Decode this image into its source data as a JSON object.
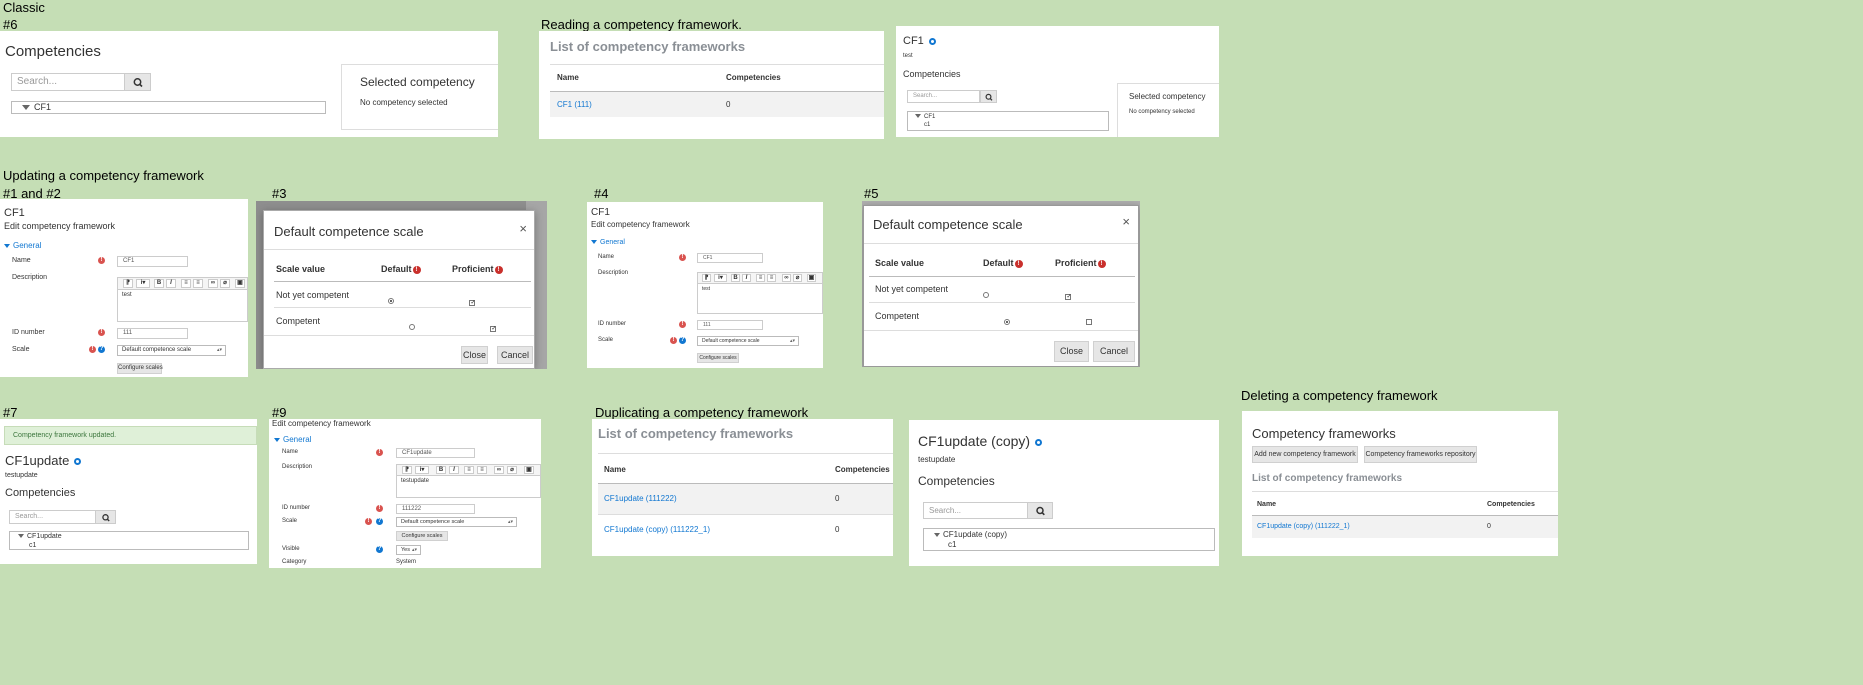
{
  "section_labels": {
    "classic": "Classic",
    "hash6": "#6",
    "reading": "Reading a competency framework.",
    "updating": "Updating a competency framework",
    "hash1and2": "#1 and #2",
    "hash3": "#3",
    "hash4": "#4",
    "hash5": "#5",
    "hash7": "#7",
    "hash9": "#9",
    "duplicating": "Duplicating a competency framework",
    "deleting": "Deleting a competency framework"
  },
  "competencies_panel": {
    "title": "Competencies",
    "search_placeholder": "Search...",
    "tree_root": "CF1",
    "selected_title": "Selected competency",
    "selected_empty": "No competency selected"
  },
  "framework_list": {
    "title": "List of competency frameworks",
    "col_name": "Name",
    "col_competencies": "Competencies",
    "rows": [
      {
        "name": "CF1 (111)",
        "count": "0"
      }
    ]
  },
  "cf1_view": {
    "title": "CF1",
    "description": "test",
    "competencies": "Competencies",
    "search_placeholder": "Search...",
    "tree_root": "CF1",
    "tree_child": "c1",
    "selected_title": "Selected competency",
    "selected_empty": "No competency selected"
  },
  "edit_form": {
    "title": "CF1",
    "subtitle": "Edit competency framework",
    "section": "General",
    "name_label": "Name",
    "name_value": "CF1",
    "description_label": "Description",
    "description_value": "test",
    "idnumber_label": "ID number",
    "idnumber_value": "111",
    "scale_label": "Scale",
    "scale_value": "Default competence scale",
    "configure_button": "Configure scales"
  },
  "scale_modal": {
    "title": "Default competence scale",
    "close_x": "×",
    "col_scale": "Scale value",
    "col_default": "Default",
    "col_proficient": "Proficient",
    "rows": [
      "Not yet competent",
      "Competent"
    ],
    "close_button": "Close",
    "cancel_button": "Cancel"
  },
  "updated_view": {
    "notice": "Competency framework updated.",
    "title": "CF1update",
    "description": "testupdate",
    "competencies": "Competencies",
    "search_placeholder": "Search...",
    "tree_root": "CF1update",
    "tree_child": "c1"
  },
  "edit_form2": {
    "subtitle": "Edit competency framework",
    "section": "General",
    "name_label": "Name",
    "name_value": "CF1update",
    "description_label": "Description",
    "description_value": "testupdate",
    "idnumber_label": "ID number",
    "idnumber_value": "111222",
    "scale_label": "Scale",
    "scale_value": "Default competence scale",
    "configure_button": "Configure scales",
    "visible_label": "Visible",
    "visible_value": "Yes",
    "category_label": "Category",
    "category_value": "System"
  },
  "dup_list": {
    "title": "List of competency frameworks",
    "col_name": "Name",
    "col_competencies": "Competencies",
    "rows": [
      {
        "name": "CF1update (111222)",
        "count": "0"
      },
      {
        "name": "CF1update (copy) (111222_1)",
        "count": "0"
      }
    ]
  },
  "copy_view": {
    "title": "CF1update (copy)",
    "description": "testupdate",
    "competencies": "Competencies",
    "search_placeholder": "Search...",
    "tree_root": "CF1update (copy)",
    "tree_child": "c1"
  },
  "delete_view": {
    "title": "Competency frameworks",
    "add_button": "Add new competency framework",
    "repo_button": "Competency frameworks repository",
    "list_title": "List of competency frameworks",
    "col_name": "Name",
    "col_competencies": "Competencies",
    "rows": [
      {
        "name": "CF1update (copy) (111222_1)",
        "count": "0"
      }
    ]
  },
  "colors": {
    "background": "#c5deb5",
    "link": "#1177d1",
    "required": "#d9534f",
    "notice_bg": "#dff0d8"
  },
  "icons": [
    "search-icon",
    "gear-icon",
    "required-icon",
    "help-icon",
    "close-icon",
    "caret-down-icon"
  ]
}
